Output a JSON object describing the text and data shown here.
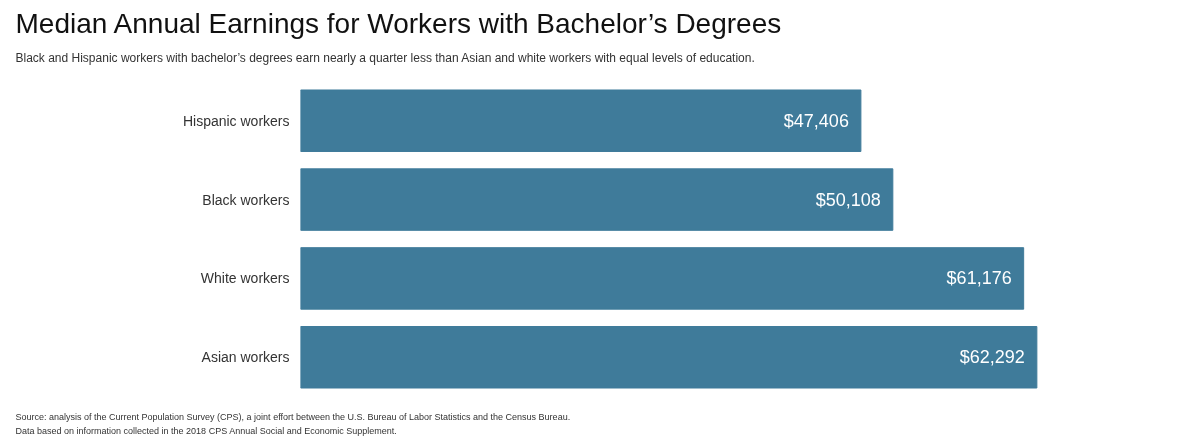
{
  "chart_data": {
    "type": "bar",
    "orientation": "horizontal",
    "title": "Median Annual Earnings for Workers with Bachelor’s Degrees",
    "subtitle": "Black and Hispanic workers with bachelor’s degrees earn nearly a quarter less than Asian and white workers with equal levels of education.",
    "categories": [
      "Hispanic workers",
      "Black workers",
      "White workers",
      "Asian workers"
    ],
    "values": [
      47406,
      50108,
      61176,
      62292
    ],
    "value_labels": [
      "$47,406",
      "$50,108",
      "$61,176",
      "$62,292"
    ],
    "color": "#3f7b9a",
    "annotations": [
      "Source: analysis of the Current Population Survey (CPS), a joint effort between the U.S. Bureau of Labor Statistics and the Census Bureau.",
      "Data based on information collected in the 2018 CPS Annual Social and Economic Supplement."
    ],
    "grid": false
  }
}
